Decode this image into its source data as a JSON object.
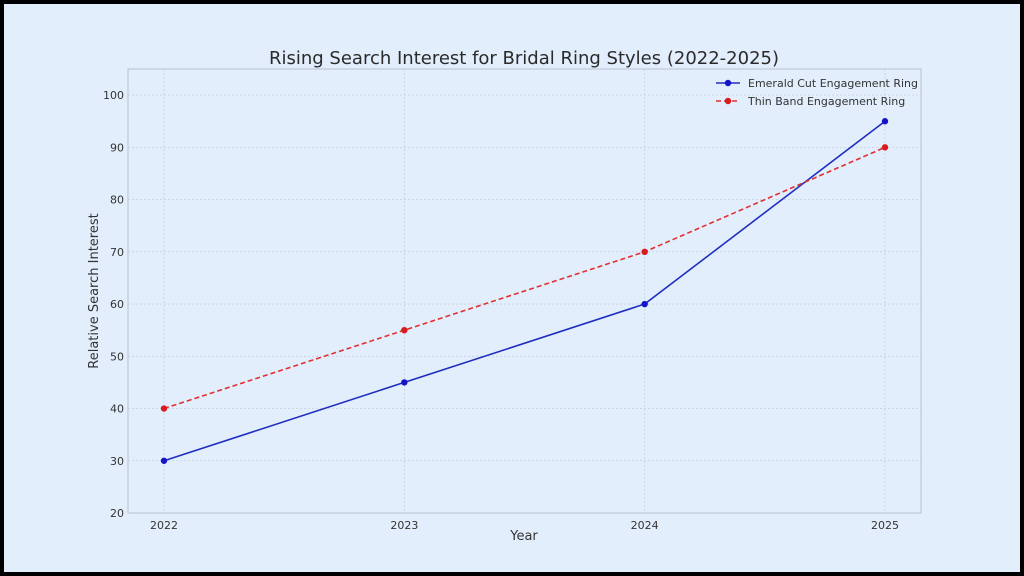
{
  "chart_data": {
    "type": "line",
    "title": "Rising Search Interest for Bridal Ring Styles (2022-2025)",
    "xlabel": "Year",
    "ylabel": "Relative Search Interest",
    "categories": [
      "2022",
      "2023",
      "2024",
      "2025"
    ],
    "ylim": [
      20,
      105
    ],
    "yticks": [
      20,
      30,
      40,
      50,
      60,
      70,
      80,
      90,
      100
    ],
    "grid": true,
    "legend_position": "top-right",
    "series": [
      {
        "name": "Emerald Cut Engagement Ring",
        "values": [
          30,
          45,
          60,
          95
        ],
        "color": "#1f2fbf",
        "marker_color": "#1414c8",
        "style": "solid"
      },
      {
        "name": "Thin Band Engagement Ring",
        "values": [
          40,
          55,
          70,
          90
        ],
        "color": "#e03131",
        "marker_color": "#d61c1c",
        "style": "dashed"
      }
    ]
  },
  "colors": {
    "background": "#e3eefc",
    "frame": "#000000",
    "grid": "#c5d0de",
    "axes": "#b6c2d2"
  }
}
